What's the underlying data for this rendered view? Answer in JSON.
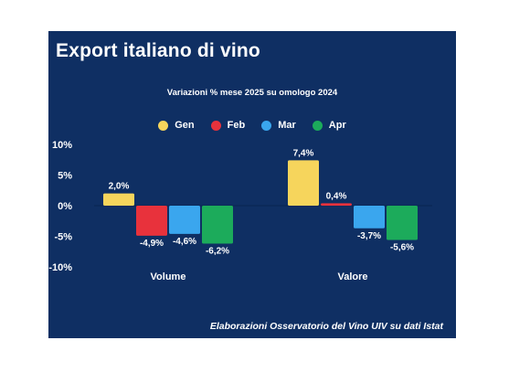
{
  "chart_data": {
    "type": "bar",
    "title": "Export italiano di vino",
    "subtitle": "Variazioni % mese 2025 su omologo 2024",
    "categories": [
      "Volume",
      "Valore"
    ],
    "series": [
      {
        "name": "Gen",
        "color": "#f6d55c",
        "values": [
          2.0,
          7.4
        ],
        "labels": [
          "2,0%",
          "7,4%"
        ]
      },
      {
        "name": "Feb",
        "color": "#e8323c",
        "values": [
          -4.9,
          0.4
        ],
        "labels": [
          "-4,9%",
          "0,4%"
        ]
      },
      {
        "name": "Mar",
        "color": "#3aa6ee",
        "values": [
          -4.6,
          -3.7
        ],
        "labels": [
          "-4,6%",
          "-3,7%"
        ]
      },
      {
        "name": "Apr",
        "color": "#1cab5b",
        "values": [
          -6.2,
          -5.6
        ],
        "labels": [
          "-6,2%",
          "-5,6%"
        ]
      }
    ],
    "ylim": [
      -10,
      10
    ],
    "yticks": [
      10,
      5,
      0,
      -5,
      -10
    ],
    "ytick_labels": [
      "10%",
      "5%",
      "0%",
      "-5%",
      "-10%"
    ],
    "legend_position": "top-center",
    "grid": false,
    "source": "Elaborazioni Osservatorio del Vino UIV su dati Istat"
  },
  "colors": {
    "background": "#0f2f63",
    "text": "#ffffff"
  }
}
